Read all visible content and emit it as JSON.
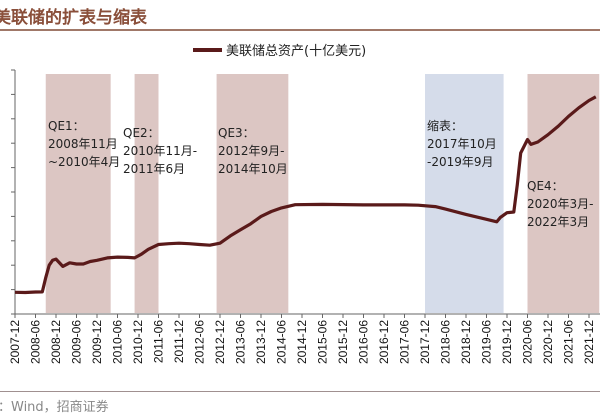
{
  "title": "美联储的扩表与缩表",
  "source": "：Wind，招商证券",
  "chart_data": {
    "type": "line",
    "title": "",
    "legend": {
      "position": "top-center",
      "entries": [
        "美联储总资产(十亿美元)"
      ]
    },
    "series": [
      {
        "name": "美联储总资产(十亿美元)",
        "color": "#5a1a1a",
        "points": [
          [
            "2007-12",
            890
          ],
          [
            "2008-03",
            880
          ],
          [
            "2008-06",
            900
          ],
          [
            "2008-08",
            905
          ],
          [
            "2008-09",
            1500
          ],
          [
            "2008-10",
            2000
          ],
          [
            "2008-11",
            2200
          ],
          [
            "2008-12",
            2250
          ],
          [
            "2009-02",
            1950
          ],
          [
            "2009-04",
            2100
          ],
          [
            "2009-06",
            2050
          ],
          [
            "2009-08",
            2050
          ],
          [
            "2009-10",
            2150
          ],
          [
            "2009-12",
            2200
          ],
          [
            "2010-03",
            2300
          ],
          [
            "2010-06",
            2330
          ],
          [
            "2010-09",
            2320
          ],
          [
            "2010-11",
            2300
          ],
          [
            "2011-01",
            2450
          ],
          [
            "2011-03",
            2650
          ],
          [
            "2011-06",
            2850
          ],
          [
            "2011-09",
            2880
          ],
          [
            "2011-12",
            2900
          ],
          [
            "2012-03",
            2880
          ],
          [
            "2012-06",
            2850
          ],
          [
            "2012-09",
            2820
          ],
          [
            "2012-12",
            2900
          ],
          [
            "2013-03",
            3200
          ],
          [
            "2013-06",
            3450
          ],
          [
            "2013-09",
            3700
          ],
          [
            "2013-12",
            4000
          ],
          [
            "2014-03",
            4200
          ],
          [
            "2014-06",
            4350
          ],
          [
            "2014-10",
            4480
          ],
          [
            "2015-06",
            4490
          ],
          [
            "2016-06",
            4470
          ],
          [
            "2017-06",
            4470
          ],
          [
            "2017-10",
            4460
          ],
          [
            "2018-03",
            4400
          ],
          [
            "2018-06",
            4300
          ],
          [
            "2018-12",
            4080
          ],
          [
            "2019-06",
            3880
          ],
          [
            "2019-09",
            3780
          ],
          [
            "2019-10",
            3950
          ],
          [
            "2019-12",
            4150
          ],
          [
            "2020-02",
            4180
          ],
          [
            "2020-03",
            5300
          ],
          [
            "2020-04",
            6600
          ],
          [
            "2020-06",
            7150
          ],
          [
            "2020-07",
            6950
          ],
          [
            "2020-09",
            7050
          ],
          [
            "2020-12",
            7350
          ],
          [
            "2021-03",
            7700
          ],
          [
            "2021-06",
            8100
          ],
          [
            "2021-09",
            8450
          ],
          [
            "2021-12",
            8750
          ],
          [
            "2022-02",
            8900
          ]
        ]
      }
    ],
    "x_ticks": [
      "2007-12",
      "2008-06",
      "2008-12",
      "2009-06",
      "2009-12",
      "2010-06",
      "2010-12",
      "2011-06",
      "2011-12",
      "2012-06",
      "2012-12",
      "2013-06",
      "2013-12",
      "2014-06",
      "2014-12",
      "2015-06",
      "2015-12",
      "2016-06",
      "2016-12",
      "2017-06",
      "2017-12",
      "2018-06",
      "2018-12",
      "2019-06",
      "2019-12",
      "2020-06",
      "2020-12",
      "2021-06",
      "2021-12"
    ],
    "ylim": [
      0,
      10000
    ],
    "y_tick_step": 1000,
    "y_tick_labels_visible": false,
    "grid": false,
    "bands": [
      {
        "name": "QE1",
        "start": "2008-09",
        "end": "2010-04",
        "color": "#dcc6c3",
        "lines": [
          "QE1：",
          "2008年11月",
          "~2010年4月"
        ]
      },
      {
        "name": "QE2",
        "start": "2010-11",
        "end": "2011-06",
        "color": "#dcc6c3",
        "lines": [
          "QE2：",
          "2010年11月-",
          "2011年6月"
        ]
      },
      {
        "name": "QE3",
        "start": "2012-11",
        "end": "2014-08",
        "color": "#dcc6c3",
        "lines": [
          "QE3：",
          "2012年9月-",
          "2014年10月"
        ]
      },
      {
        "name": "缩表",
        "start": "2017-12",
        "end": "2019-11",
        "color": "#d5dcea",
        "lines": [
          "缩表：",
          "2017年10月",
          "-2019年9月"
        ]
      },
      {
        "name": "QE4",
        "start": "2020-06",
        "end": "2022-03",
        "color": "#dcc6c3",
        "lines": [
          "QE4：",
          "2020年3月-",
          "2022年3月"
        ]
      }
    ]
  }
}
